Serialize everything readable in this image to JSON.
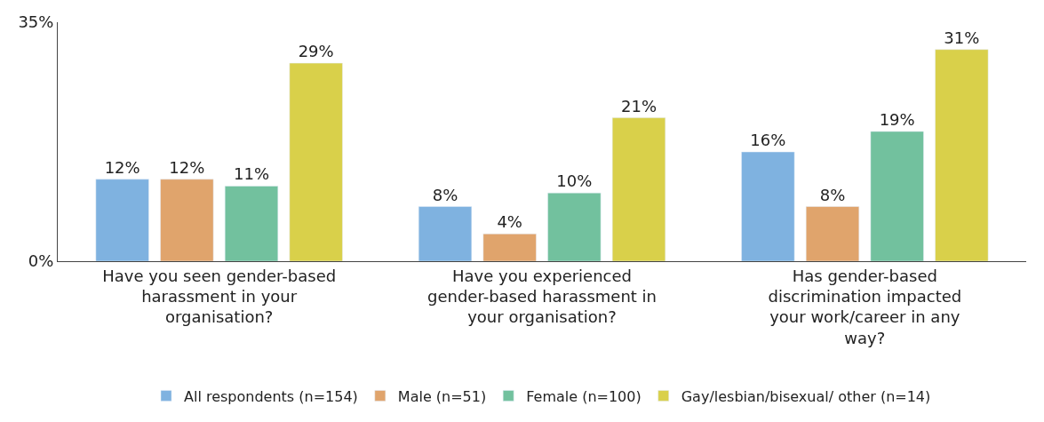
{
  "chart_data": {
    "type": "bar",
    "categories": [
      "Have you seen gender-based harassment in your organisation?",
      "Have you experienced gender-based harassment in your organisation?",
      "Has gender-based discrimination impacted your work/career in any way?"
    ],
    "series": [
      {
        "name": "All respondents (n=154)",
        "color": "#7fb2e0",
        "values": [
          12,
          8,
          16
        ],
        "value_labels": [
          "12%",
          "8%",
          "16%"
        ]
      },
      {
        "name": "Male (n=51)",
        "color": "#e0a46c",
        "values": [
          12,
          4,
          8
        ],
        "value_labels": [
          "12%",
          "4%",
          "8%"
        ]
      },
      {
        "name": "Female (n=100)",
        "color": "#72c19e",
        "values": [
          11,
          10,
          19
        ],
        "value_labels": [
          "11%",
          "10%",
          "19%"
        ]
      },
      {
        "name": "Gay/lesbian/bisexual/ other (n=14)",
        "color": "#d9d04a",
        "values": [
          29,
          21,
          31
        ],
        "value_labels": [
          "29%",
          "21%",
          "31%"
        ]
      }
    ],
    "ylim": [
      0,
      35
    ],
    "yticks": [
      {
        "value": 0,
        "label": "0%"
      },
      {
        "value": 35,
        "label": "35%"
      }
    ],
    "legend": "bottom"
  }
}
